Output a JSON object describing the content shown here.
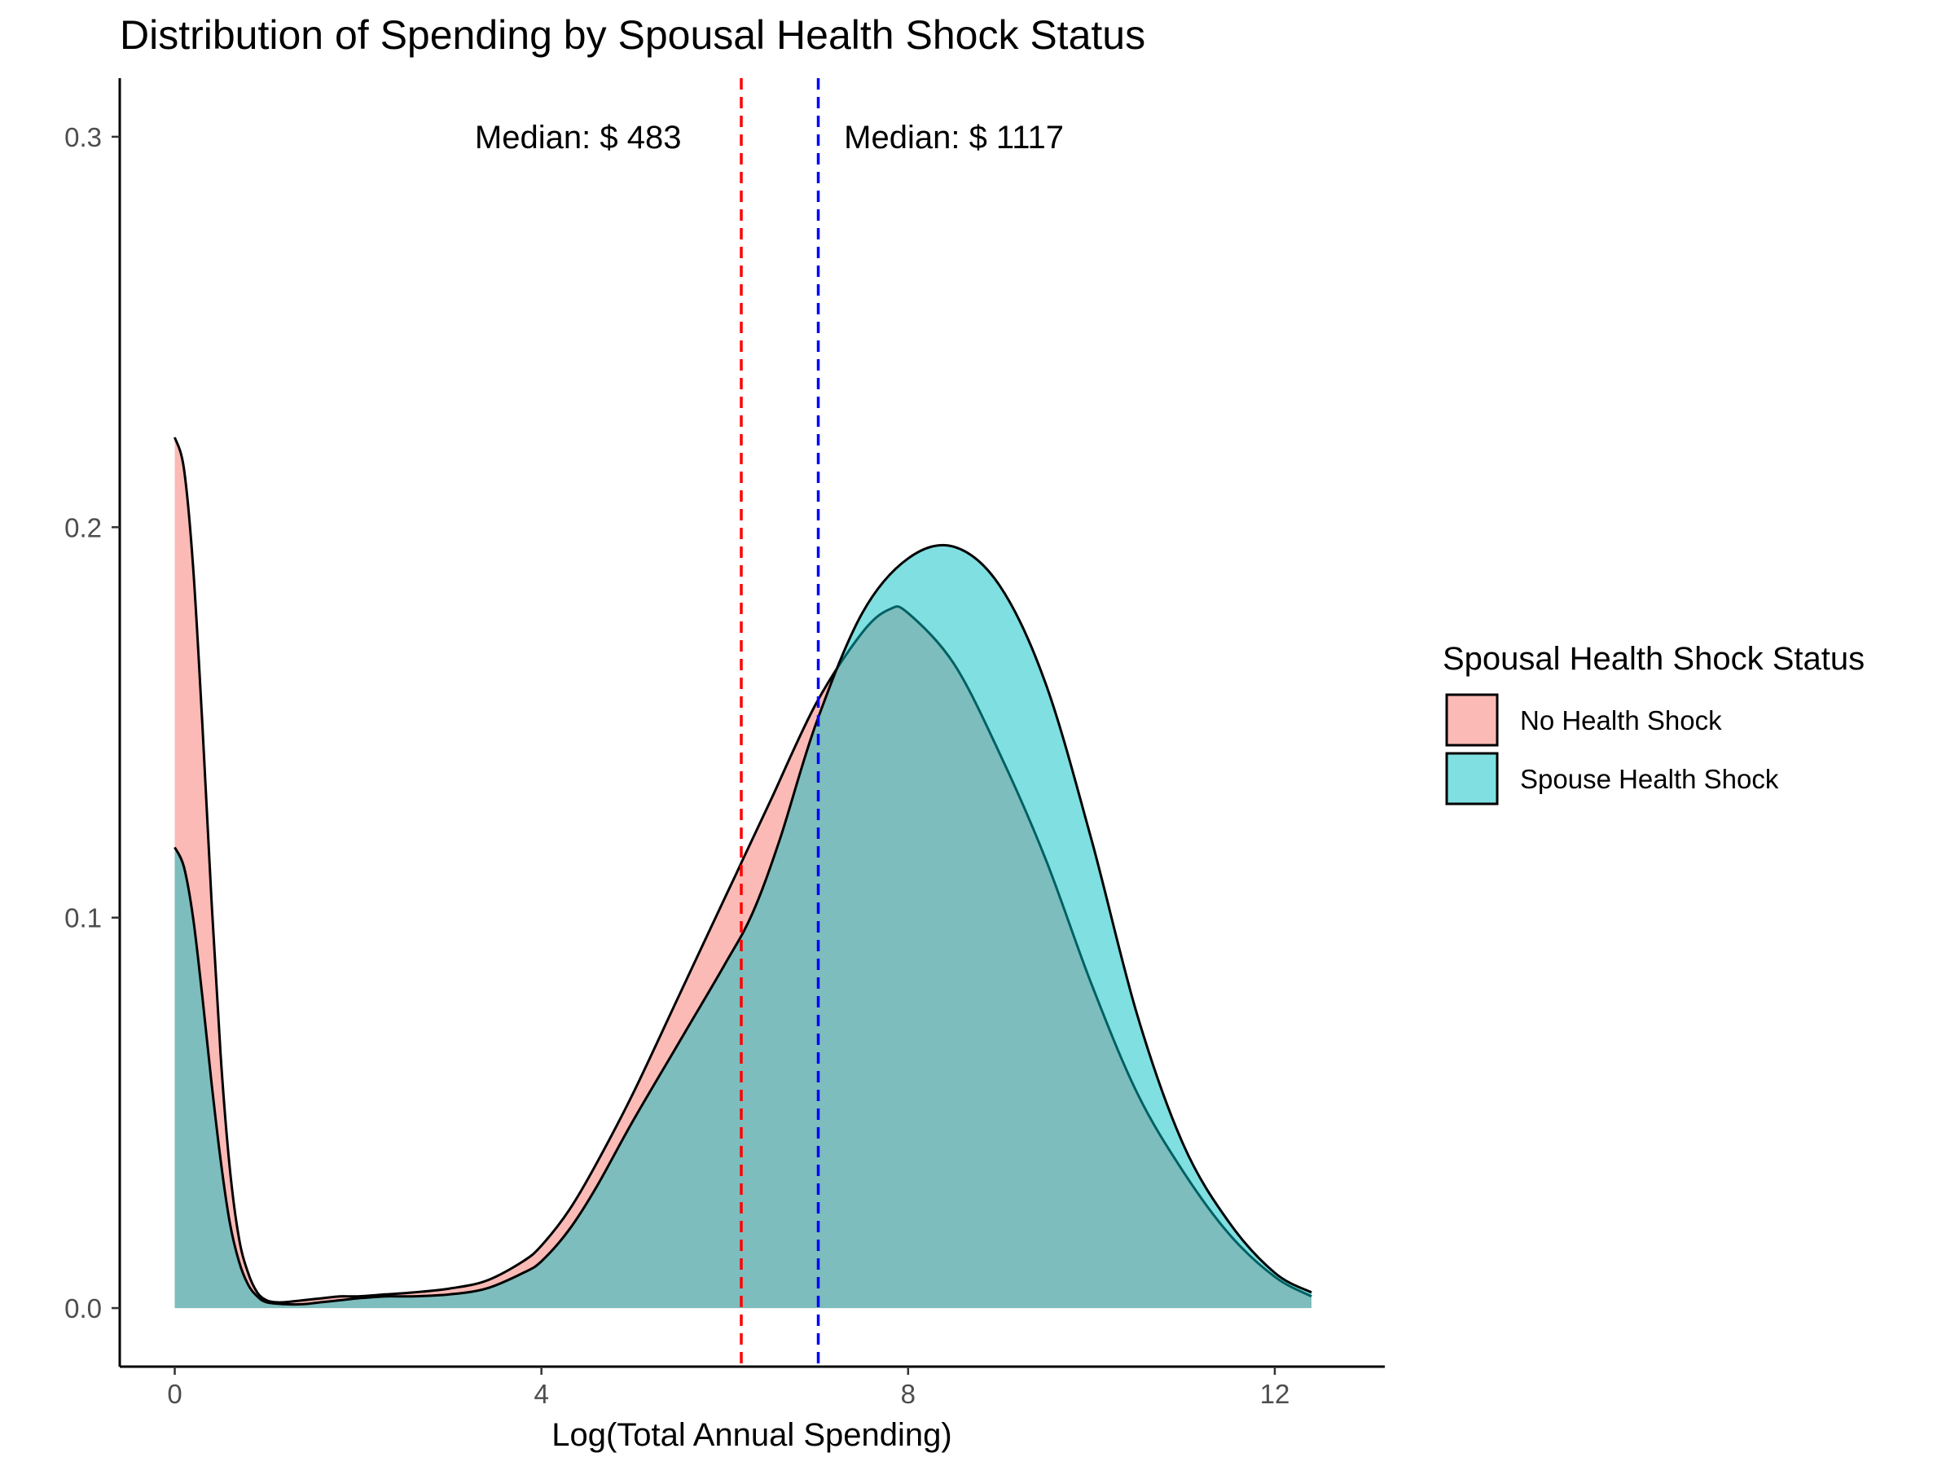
{
  "chart_data": {
    "type": "area",
    "title": "Distribution of Spending by Spousal Health Shock Status",
    "xlabel": "Log(Total Annual Spending)",
    "ylabel": "",
    "xlim": [
      -0.6,
      13.2
    ],
    "ylim": [
      -0.015,
      0.315
    ],
    "x_ticks": [
      0,
      4,
      8,
      12
    ],
    "x_tick_labels": [
      "0",
      "4",
      "8",
      "12"
    ],
    "y_ticks": [
      0.0,
      0.1,
      0.2,
      0.3
    ],
    "y_tick_labels": [
      "0.0",
      "0.1",
      "0.2",
      "0.3"
    ],
    "grid": false,
    "legend": {
      "title": "Spousal Health Shock Status",
      "position": "right",
      "entries": [
        "No Health Shock",
        "Spouse Health Shock"
      ]
    },
    "series": [
      {
        "name": "No Health Shock",
        "color": "#F8766D",
        "x": [
          0,
          0.1,
          0.2,
          0.3,
          0.4,
          0.5,
          0.6,
          0.7,
          0.8,
          0.9,
          1.0,
          1.1,
          1.2,
          1.4,
          1.6,
          1.8,
          2.0,
          2.3,
          2.6,
          3.0,
          3.4,
          3.8,
          4.0,
          4.3,
          4.6,
          5.0,
          5.5,
          6.0,
          6.2,
          6.5,
          7.0,
          7.5,
          7.8,
          8.0,
          8.5,
          9.0,
          9.5,
          10.0,
          10.5,
          11.0,
          11.5,
          12.0,
          12.4
        ],
        "y": [
          0.223,
          0.215,
          0.19,
          0.15,
          0.105,
          0.065,
          0.036,
          0.018,
          0.009,
          0.004,
          0.002,
          0.0015,
          0.0015,
          0.002,
          0.0025,
          0.003,
          0.003,
          0.0035,
          0.004,
          0.005,
          0.007,
          0.012,
          0.016,
          0.025,
          0.037,
          0.055,
          0.08,
          0.105,
          0.115,
          0.13,
          0.155,
          0.173,
          0.179,
          0.178,
          0.165,
          0.142,
          0.115,
          0.083,
          0.055,
          0.035,
          0.019,
          0.008,
          0.003
        ]
      },
      {
        "name": "Spouse Health Shock",
        "color": "#00BFC4",
        "x": [
          0,
          0.1,
          0.2,
          0.3,
          0.4,
          0.5,
          0.6,
          0.7,
          0.8,
          0.9,
          1.0,
          1.2,
          1.4,
          1.6,
          1.8,
          2.0,
          2.3,
          2.6,
          3.0,
          3.4,
          3.8,
          4.0,
          4.3,
          4.6,
          5.0,
          5.5,
          6.0,
          6.3,
          6.6,
          7.0,
          7.5,
          8.0,
          8.5,
          9.0,
          9.5,
          10.0,
          10.5,
          11.0,
          11.5,
          12.0,
          12.4
        ],
        "y": [
          0.118,
          0.113,
          0.1,
          0.08,
          0.058,
          0.038,
          0.022,
          0.012,
          0.006,
          0.003,
          0.0015,
          0.001,
          0.001,
          0.0015,
          0.002,
          0.0025,
          0.003,
          0.003,
          0.0035,
          0.005,
          0.009,
          0.012,
          0.02,
          0.031,
          0.048,
          0.068,
          0.088,
          0.101,
          0.12,
          0.15,
          0.178,
          0.192,
          0.195,
          0.185,
          0.16,
          0.12,
          0.075,
          0.042,
          0.022,
          0.009,
          0.004
        ]
      }
    ],
    "vlines": [
      {
        "x": 6.18,
        "color": "#FF0000",
        "linetype": "dashed"
      },
      {
        "x": 7.02,
        "color": "#0000FF",
        "linetype": "dashed"
      }
    ],
    "annotations": [
      {
        "text": "Median: $ 483",
        "x": 4.4,
        "y": 0.3
      },
      {
        "text": "Median: $ 1117",
        "x": 8.5,
        "y": 0.3
      }
    ],
    "fill_alpha": 0.5
  }
}
